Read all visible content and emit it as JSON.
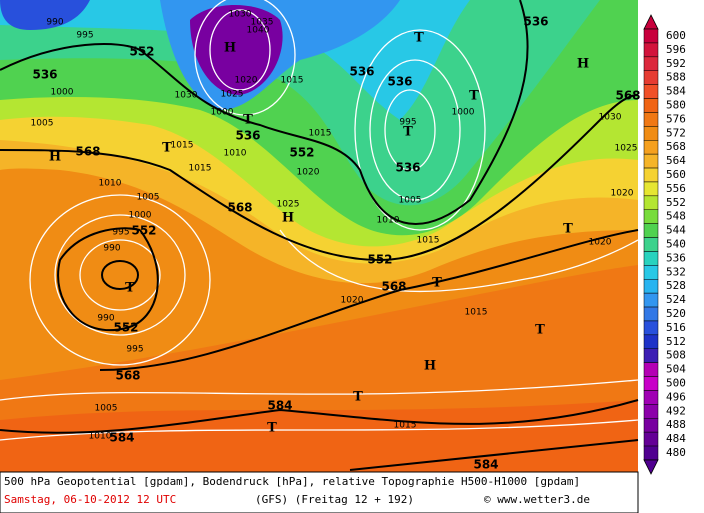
{
  "map": {
    "labels": [
      "990",
      "995",
      "552",
      "536",
      "1000",
      "1005",
      "H",
      "568",
      "T",
      "1015",
      "1015",
      "1030",
      "1035",
      "1040",
      "H",
      "1020",
      "1015",
      "1030",
      "1025",
      "1000",
      "T",
      "536",
      "1010",
      "536",
      "552",
      "1015",
      "1020",
      "536",
      "T",
      "536",
      "T",
      "1000",
      "995",
      "T",
      "536",
      "1005",
      "1010",
      "1015",
      "H",
      "568",
      "1030",
      "1025",
      "1020",
      "1010",
      "1005",
      "1000",
      "552",
      "995",
      "990",
      "T",
      "568",
      "1025",
      "H",
      "552",
      "568",
      "T",
      "1020",
      "1015",
      "T",
      "1020",
      "990",
      "552",
      "995",
      "T",
      "H",
      "568",
      "1005",
      "584",
      "T",
      "T",
      "1015",
      "584",
      "1010",
      "584"
    ]
  },
  "legend": {
    "values": [
      600,
      596,
      592,
      588,
      584,
      580,
      576,
      572,
      568,
      564,
      560,
      556,
      552,
      548,
      544,
      540,
      536,
      532,
      528,
      524,
      520,
      516,
      512,
      508,
      504,
      500,
      496,
      492,
      488,
      484,
      480
    ],
    "colors": [
      "#c8003c",
      "#d2143c",
      "#dc283c",
      "#e63c32",
      "#f05028",
      "#f06414",
      "#f07814",
      "#f08c14",
      "#f5a01e",
      "#f5b428",
      "#f5d232",
      "#e6e632",
      "#b4e632",
      "#78dc3c",
      "#50d250",
      "#3cd28c",
      "#28d2be",
      "#28c8e6",
      "#28b4f0",
      "#3296f0",
      "#3278e6",
      "#2850dc",
      "#1e32c8",
      "#3c1eb4",
      "#b400b4",
      "#c800c8",
      "#a000b4",
      "#8c00aa",
      "#7800a0",
      "#640096",
      "#500090"
    ]
  },
  "footer": {
    "line1": "500 hPa Geopotential [gpdam], Bodendruck [hPa], relative Topographie H500-H1000 [gpdam]",
    "date": "Samstag, 06-10-2012  12 UTC",
    "model": "(GFS)  (Freitag 12 + 192)",
    "credit": "© www.wetter3.de"
  }
}
